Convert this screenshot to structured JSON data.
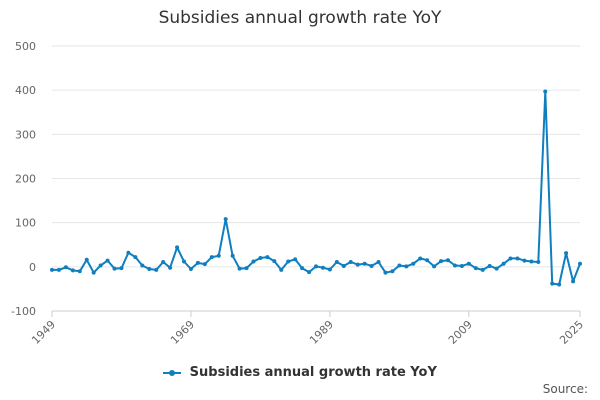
{
  "chart_data": {
    "type": "line",
    "title": "Subsidies annual growth rate YoY",
    "xlabel": "",
    "ylabel": "",
    "ylim": [
      -100,
      500
    ],
    "xlim": [
      1949,
      2025
    ],
    "y_ticks": [
      "500",
      "400",
      "300",
      "200",
      "100",
      "0",
      "-100"
    ],
    "x_ticks": [
      "1949",
      "1969",
      "1989",
      "2009",
      "2025"
    ],
    "grid": true,
    "legend_position": "bottom",
    "source_label": "Source:",
    "series": [
      {
        "name": "Subsidies annual growth rate YoY",
        "color": "#0f7fbf",
        "x": [
          1949,
          1950,
          1951,
          1952,
          1953,
          1954,
          1955,
          1956,
          1957,
          1958,
          1959,
          1960,
          1961,
          1962,
          1963,
          1964,
          1965,
          1966,
          1967,
          1968,
          1969,
          1970,
          1971,
          1972,
          1973,
          1974,
          1975,
          1976,
          1977,
          1978,
          1979,
          1980,
          1981,
          1982,
          1983,
          1984,
          1985,
          1986,
          1987,
          1988,
          1989,
          1990,
          1991,
          1992,
          1993,
          1994,
          1995,
          1996,
          1997,
          1998,
          1999,
          2000,
          2001,
          2002,
          2003,
          2004,
          2005,
          2006,
          2007,
          2008,
          2009,
          2010,
          2011,
          2012,
          2013,
          2014,
          2015,
          2016,
          2017,
          2018,
          2019,
          2020,
          2021,
          2022,
          2023,
          2024,
          2025
        ],
        "values": [
          -7,
          -7,
          -1,
          -8,
          -10,
          16,
          -13,
          3,
          14,
          -4,
          -3,
          32,
          22,
          3,
          -5,
          -7,
          11,
          -2,
          44,
          12,
          -5,
          9,
          6,
          22,
          25,
          108,
          25,
          -4,
          -3,
          12,
          20,
          22,
          13,
          -7,
          12,
          17,
          -3,
          -12,
          1,
          -2,
          -6,
          11,
          2,
          11,
          5,
          7,
          2,
          11,
          -13,
          -10,
          3,
          1,
          7,
          19,
          15,
          1,
          13,
          15,
          3,
          2,
          7,
          -3,
          -7,
          2,
          -4,
          7,
          19,
          19,
          14,
          12,
          11,
          397,
          -38,
          -40,
          31,
          -33,
          7
        ]
      }
    ]
  }
}
